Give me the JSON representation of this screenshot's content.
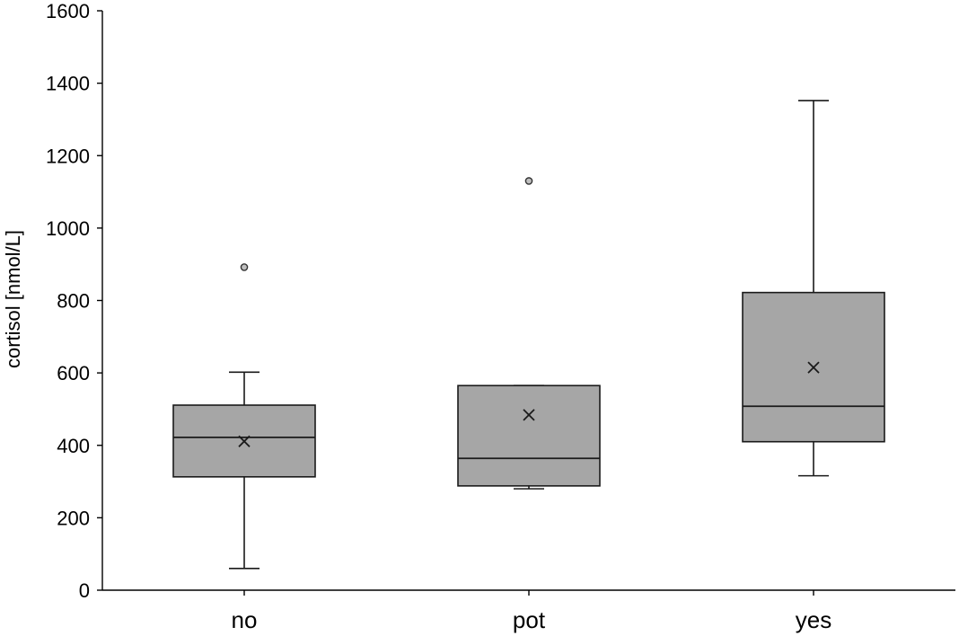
{
  "chart_data": {
    "type": "boxplot",
    "title": "",
    "xlabel": "",
    "ylabel": "cortisol [nmol/L]",
    "ylim": [
      0,
      1600
    ],
    "yticks": [
      0,
      200,
      400,
      600,
      800,
      1000,
      1200,
      1400,
      1600
    ],
    "grid": false,
    "categories": [
      "no",
      "pot",
      "yes"
    ],
    "boxes": [
      {
        "category": "no",
        "whisker_low": 60,
        "q1": 313,
        "median": 422,
        "q3": 511,
        "whisker_high": 602,
        "mean": 411,
        "outliers": [
          892
        ]
      },
      {
        "category": "pot",
        "whisker_low": 280,
        "q1": 288,
        "median": 364,
        "q3": 565,
        "whisker_high": 565,
        "mean": 484,
        "outliers": [
          1130
        ]
      },
      {
        "category": "yes",
        "whisker_low": 316,
        "q1": 410,
        "median": 508,
        "q3": 822,
        "whisker_high": 1352,
        "mean": 615,
        "outliers": []
      }
    ],
    "colors": {
      "box_fill": "#a6a6a6",
      "outlier_fill": "#bfbfbf",
      "line": "#1a1a1a"
    }
  }
}
